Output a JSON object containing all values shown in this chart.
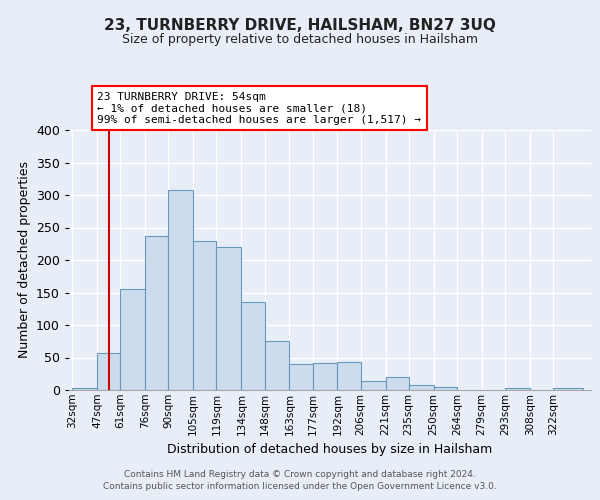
{
  "title": "23, TURNBERRY DRIVE, HAILSHAM, BN27 3UQ",
  "subtitle": "Size of property relative to detached houses in Hailsham",
  "xlabel": "Distribution of detached houses by size in Hailsham",
  "ylabel": "Number of detached properties",
  "bar_labels": [
    "32sqm",
    "47sqm",
    "61sqm",
    "76sqm",
    "90sqm",
    "105sqm",
    "119sqm",
    "134sqm",
    "148sqm",
    "163sqm",
    "177sqm",
    "192sqm",
    "206sqm",
    "221sqm",
    "235sqm",
    "250sqm",
    "264sqm",
    "279sqm",
    "293sqm",
    "308sqm",
    "322sqm"
  ],
  "bar_values": [
    3,
    57,
    155,
    237,
    308,
    230,
    220,
    135,
    76,
    40,
    41,
    43,
    14,
    20,
    7,
    4,
    0,
    0,
    3,
    0,
    3
  ],
  "bar_color": "#ccdcec",
  "bar_edge_color": "#6699bb",
  "ylim": [
    0,
    400
  ],
  "yticks": [
    0,
    50,
    100,
    150,
    200,
    250,
    300,
    350,
    400
  ],
  "annotation_title": "23 TURNBERRY DRIVE: 54sqm",
  "annotation_line1": "← 1% of detached houses are smaller (18)",
  "annotation_line2": "99% of semi-detached houses are larger (1,517) →",
  "footer_line1": "Contains HM Land Registry data © Crown copyright and database right 2024.",
  "footer_line2": "Contains public sector information licensed under the Open Government Licence v3.0.",
  "background_color": "#e8eef8",
  "plot_background": "#e8eef8",
  "grid_color": "#ffffff",
  "red_line_color": "#cc0000",
  "property_sqm": 54,
  "bin_edges": [
    32,
    47,
    61,
    76,
    90,
    105,
    119,
    134,
    148,
    163,
    177,
    192,
    206,
    221,
    235,
    250,
    264,
    279,
    293,
    308,
    322,
    340
  ]
}
